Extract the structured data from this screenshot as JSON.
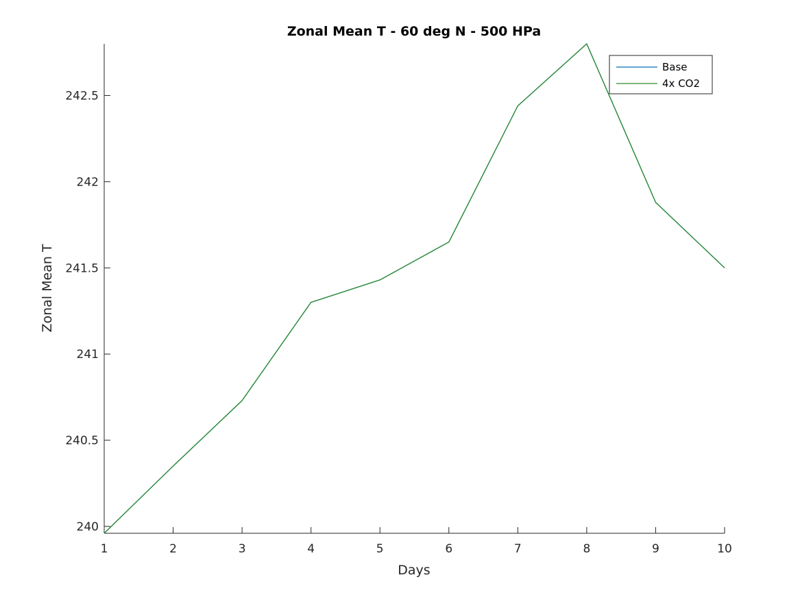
{
  "chart_data": {
    "type": "line",
    "title": "Zonal Mean T - 60 deg N - 500 HPa",
    "xlabel": "Days",
    "ylabel": "Zonal Mean T",
    "x": [
      1,
      2,
      3,
      4,
      5,
      6,
      7,
      8,
      9,
      10
    ],
    "xlim": [
      1,
      10
    ],
    "ylim": [
      239.96,
      242.8
    ],
    "xticks": [
      "1",
      "2",
      "3",
      "4",
      "5",
      "6",
      "7",
      "8",
      "9",
      "10"
    ],
    "yticks": [
      "240",
      "240.5",
      "241",
      "241.5",
      "242",
      "242.5"
    ],
    "ytick_values": [
      240,
      240.5,
      241,
      241.5,
      242,
      242.5
    ],
    "grid": false,
    "legend_position": "top-right",
    "series": [
      {
        "name": "Base",
        "color": "#0072BD",
        "values": [
          239.96,
          240.35,
          240.73,
          241.3,
          241.43,
          241.65,
          242.44,
          242.8,
          241.88,
          241.5
        ]
      },
      {
        "name": "4x CO2",
        "color": "#2E8B2E",
        "values": [
          239.96,
          240.35,
          240.73,
          241.3,
          241.43,
          241.65,
          242.44,
          242.8,
          241.88,
          241.5
        ]
      }
    ]
  }
}
